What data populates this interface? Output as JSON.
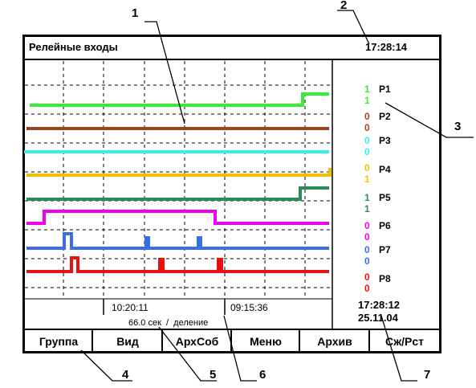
{
  "header": {
    "title": "Релейные входы",
    "time": "17:28:14"
  },
  "callouts": [
    "1",
    "2",
    "3",
    "4",
    "5",
    "6",
    "7"
  ],
  "channels": [
    {
      "name": "P1",
      "top_value": "1",
      "bottom_value": "1",
      "color": "#33ee33"
    },
    {
      "name": "P2",
      "top_value": "0",
      "bottom_value": "0",
      "color": "#a0421c"
    },
    {
      "name": "P3",
      "top_value": "0",
      "bottom_value": "0",
      "color": "#33eeee"
    },
    {
      "name": "P4",
      "top_value": "0",
      "bottom_value": "1",
      "color": "#f0c000"
    },
    {
      "name": "P5",
      "top_value": "1",
      "bottom_value": "1",
      "color": "#2e8b57"
    },
    {
      "name": "P6",
      "top_value": "0",
      "bottom_value": "0",
      "color": "#ee00ee"
    },
    {
      "name": "P7",
      "top_value": "0",
      "bottom_value": "0",
      "color": "#3a6ee8"
    },
    {
      "name": "P8",
      "top_value": "0",
      "bottom_value": "0",
      "color": "#e81010"
    }
  ],
  "time_axis": {
    "left_time": "10:20:11",
    "right_time": "09:15:36",
    "scale": "66.0 сек  /  деление"
  },
  "status": {
    "current_time": "17:28:12",
    "current_date": "25.11.04"
  },
  "function_keys": [
    "Группа",
    "Вид",
    "АрхСоб",
    "Меню",
    "Архив",
    "Сж/Рст"
  ]
}
